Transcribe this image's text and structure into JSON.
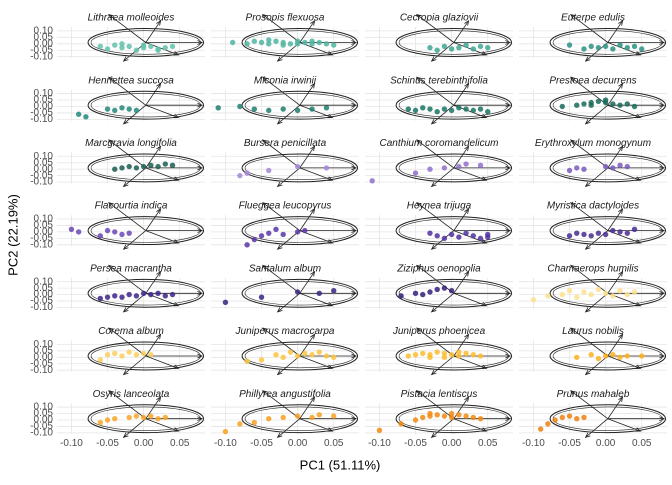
{
  "chart_data": {
    "type": "scatter",
    "xlabel": "PC1 (51.11%)",
    "ylabel": "PC2 (22.19%)",
    "xlim": [
      -0.12,
      0.085
    ],
    "ylim": [
      -0.11,
      0.13
    ],
    "xticks": [
      {
        "value": -0.1,
        "label": "-0.10"
      },
      {
        "value": -0.05,
        "label": "-0.05"
      },
      {
        "value": 0,
        "label": "0.00"
      },
      {
        "value": 0.05,
        "label": "0.05"
      }
    ],
    "yticks": [
      {
        "value": 0.1,
        "label": "0.10"
      },
      {
        "value": 0.05,
        "label": "0.05"
      },
      {
        "value": 0,
        "label": "0.00"
      },
      {
        "value": -0.05,
        "label": "-0.05"
      },
      {
        "value": -0.1,
        "label": "-0.10"
      }
    ],
    "grid": true,
    "facets": [
      {
        "title": "Lithraea molleoides",
        "color": "#62c2aa",
        "x": [
          -0.06,
          -0.05,
          -0.04,
          -0.03,
          -0.02,
          -0.01,
          0.0,
          0.01,
          0.02,
          0.03,
          0.04,
          -0.03,
          0.0,
          0.02
        ],
        "y": [
          -0.02,
          -0.04,
          -0.01,
          -0.03,
          -0.02,
          -0.05,
          -0.03,
          -0.02,
          -0.04,
          -0.03,
          -0.02,
          0.0,
          -0.01,
          -0.05
        ]
      },
      {
        "title": "Prosopis flexuosa",
        "color": "#4fb5a0",
        "x": [
          -0.09,
          -0.07,
          -0.06,
          -0.05,
          -0.04,
          -0.03,
          -0.02,
          -0.01,
          0.0,
          0.01,
          0.02,
          0.03,
          0.04,
          0.05,
          -0.04,
          -0.02,
          0.0,
          0.02
        ],
        "y": [
          0.01,
          0.0,
          0.02,
          0.01,
          0.0,
          0.02,
          0.01,
          0.0,
          0.02,
          0.01,
          0.0,
          0.01,
          0.0,
          -0.01,
          0.03,
          -0.01,
          0.0,
          0.02
        ]
      },
      {
        "title": "Cecropia glaziovii",
        "color": "#3ea792",
        "x": [
          -0.03,
          -0.02,
          -0.01,
          0.0,
          0.01,
          0.02,
          0.03,
          0.04,
          0.05
        ],
        "y": [
          -0.03,
          -0.05,
          -0.02,
          -0.04,
          -0.03,
          -0.01,
          -0.04,
          -0.02,
          -0.03
        ]
      },
      {
        "title": "Euterpe edulis",
        "color": "#2b9182",
        "x": [
          -0.05,
          -0.03,
          -0.02,
          -0.01,
          0.0,
          0.01,
          0.02,
          0.03,
          0.04,
          0.05
        ],
        "y": [
          -0.01,
          -0.04,
          -0.02,
          -0.03,
          -0.02,
          -0.04,
          -0.01,
          -0.03,
          -0.02,
          -0.04
        ]
      },
      {
        "title": "Henriettea succosa",
        "color": "#23887a",
        "x": [
          -0.09,
          -0.08,
          -0.05,
          -0.04,
          -0.03,
          -0.02,
          -0.01
        ],
        "y": [
          -0.06,
          -0.08,
          -0.02,
          -0.03,
          -0.01,
          -0.02,
          -0.03
        ]
      },
      {
        "title": "Miconia irwinii",
        "color": "#1f7f70",
        "x": [
          -0.11,
          -0.08,
          -0.06,
          -0.04,
          -0.02,
          0.0,
          0.02,
          0.04
        ],
        "y": [
          -0.01,
          0.0,
          -0.02,
          -0.03,
          -0.02,
          -0.03,
          -0.02,
          -0.01
        ]
      },
      {
        "title": "Schinus terebinthifolia",
        "color": "#1a7464",
        "x": [
          -0.06,
          -0.05,
          -0.04,
          -0.03,
          -0.02,
          -0.01,
          0.0,
          0.01,
          0.02,
          0.03,
          0.04,
          0.05
        ],
        "y": [
          -0.02,
          -0.03,
          -0.01,
          -0.02,
          -0.04,
          -0.02,
          -0.03,
          -0.01,
          -0.02,
          -0.03,
          -0.02,
          -0.04
        ]
      },
      {
        "title": "Prestoea decurrens",
        "color": "#176a5a",
        "x": [
          -0.06,
          -0.04,
          -0.03,
          -0.02,
          -0.01,
          0.0,
          0.01,
          0.02,
          0.03,
          0.04,
          -0.02,
          0.0
        ],
        "y": [
          0.0,
          0.01,
          0.02,
          0.03,
          0.04,
          0.03,
          0.02,
          0.01,
          0.02,
          0.0,
          0.01,
          0.05
        ]
      },
      {
        "title": "Marcgravia longifolia",
        "color": "#1a5e50",
        "x": [
          -0.04,
          -0.03,
          -0.02,
          -0.01,
          0.0,
          0.01,
          0.02,
          0.03,
          0.04
        ],
        "y": [
          0.0,
          0.01,
          0.02,
          0.01,
          0.02,
          0.03,
          0.02,
          0.04,
          0.03
        ]
      },
      {
        "title": "Bursera penicillata",
        "color": "#a486d6",
        "x": [
          -0.08,
          -0.07,
          -0.04,
          0.0,
          0.04
        ],
        "y": [
          -0.05,
          -0.03,
          -0.01,
          0.02,
          0.01
        ]
      },
      {
        "title": "Canthium coromandelicum",
        "color": "#9070cc",
        "x": [
          -0.11,
          -0.05,
          -0.03,
          -0.01,
          0.01,
          0.02,
          0.04
        ],
        "y": [
          -0.09,
          -0.03,
          0.0,
          0.01,
          0.02,
          0.04,
          0.03
        ]
      },
      {
        "title": "Erythroxylum monogynum",
        "color": "#7b5ac0",
        "x": [
          -0.05,
          -0.04,
          -0.03,
          0.0,
          0.01,
          0.02,
          0.03
        ],
        "y": [
          -0.01,
          0.01,
          0.0,
          0.02,
          0.01,
          0.03,
          0.02
        ]
      },
      {
        "title": "Flacourtia indica",
        "color": "#6a46b4",
        "x": [
          -0.1,
          -0.09,
          -0.06,
          -0.05,
          -0.04,
          -0.03,
          -0.02
        ],
        "y": [
          0.02,
          0.0,
          -0.03,
          0.01,
          0.0,
          -0.02,
          -0.01
        ]
      },
      {
        "title": "Flueggea leucopyrus",
        "color": "#5a36a8",
        "x": [
          -0.07,
          -0.06,
          -0.05,
          -0.04,
          -0.03,
          -0.02,
          0.0,
          0.01
        ],
        "y": [
          -0.1,
          -0.06,
          -0.03,
          -0.01,
          0.02,
          -0.02,
          0.0,
          0.01
        ]
      },
      {
        "title": "Heynea trijuga",
        "color": "#50309e",
        "x": [
          -0.03,
          -0.02,
          -0.01,
          0.0,
          0.01,
          0.02,
          0.03,
          0.04,
          0.05,
          0.05
        ],
        "y": [
          -0.01,
          -0.03,
          -0.05,
          -0.02,
          -0.04,
          -0.01,
          -0.03,
          -0.05,
          -0.02,
          -0.04
        ]
      },
      {
        "title": "Myristica dactyloides",
        "color": "#482a92",
        "x": [
          -0.05,
          -0.04,
          -0.03,
          -0.02,
          -0.01,
          0.0,
          0.01,
          0.02,
          0.03,
          0.04
        ],
        "y": [
          -0.03,
          -0.01,
          -0.02,
          -0.03,
          -0.01,
          -0.02,
          0.01,
          0.0,
          -0.01,
          0.02
        ]
      },
      {
        "title": "Persea macrantha",
        "color": "#3d2488",
        "x": [
          -0.06,
          -0.05,
          -0.04,
          -0.03,
          -0.02,
          -0.01,
          0.0,
          0.01,
          0.02,
          0.03,
          0.04
        ],
        "y": [
          -0.03,
          -0.02,
          -0.01,
          -0.02,
          0.0,
          -0.01,
          0.01,
          0.0,
          0.01,
          -0.01,
          0.0
        ]
      },
      {
        "title": "Santalum album",
        "color": "#3a2280",
        "x": [
          -0.1,
          -0.05,
          0.0,
          0.03,
          0.05
        ],
        "y": [
          -0.06,
          -0.02,
          0.02,
          0.01,
          0.03
        ]
      },
      {
        "title": "Ziziphus oenopolia",
        "color": "#36207a",
        "x": [
          -0.07,
          -0.05,
          -0.04,
          -0.03,
          -0.02,
          -0.01,
          0.0
        ],
        "y": [
          -0.01,
          0.01,
          0.0,
          0.02,
          0.04,
          0.05,
          0.03
        ]
      },
      {
        "title": "Chamaerops humilis",
        "color": "#fde08a",
        "x": [
          -0.1,
          -0.08,
          -0.06,
          -0.05,
          -0.04,
          -0.03,
          -0.02,
          -0.01,
          0.0,
          0.01,
          0.02,
          0.03,
          0.04
        ],
        "y": [
          -0.04,
          -0.01,
          0.0,
          0.03,
          -0.02,
          0.02,
          0.0,
          0.04,
          0.01,
          -0.01,
          0.03,
          0.0,
          0.02
        ]
      },
      {
        "title": "Corema album",
        "color": "#fcce5c",
        "x": [
          -0.06,
          -0.05,
          -0.04,
          -0.03,
          -0.02,
          -0.01,
          0.0,
          0.01
        ],
        "y": [
          -0.02,
          0.02,
          0.03,
          0.01,
          0.04,
          0.02,
          0.03,
          0.02
        ]
      },
      {
        "title": "Juniperus macrocarpa",
        "color": "#fbc440",
        "x": [
          -0.07,
          -0.05,
          -0.03,
          -0.02,
          -0.01,
          0.0,
          0.01,
          0.02,
          0.03,
          0.04,
          0.05
        ],
        "y": [
          -0.03,
          -0.02,
          0.02,
          0.0,
          0.04,
          0.01,
          0.03,
          0.02,
          0.04,
          0.01,
          0.0
        ]
      },
      {
        "title": "Juniperus phoenicea",
        "color": "#fcbc30",
        "x": [
          -0.06,
          -0.05,
          -0.04,
          -0.03,
          -0.02,
          -0.01,
          0.0,
          0.01,
          0.02,
          0.03,
          0.04,
          -0.03,
          -0.01,
          0.01
        ],
        "y": [
          0.01,
          0.02,
          0.03,
          0.02,
          0.04,
          0.03,
          0.02,
          0.01,
          0.03,
          0.02,
          0.01,
          0.0,
          0.0,
          0.04
        ]
      },
      {
        "title": "Laurus nobilis",
        "color": "#fbb020",
        "x": [
          -0.04,
          -0.02,
          -0.01,
          0.0,
          0.01,
          0.02,
          0.03,
          0.05
        ],
        "y": [
          0.0,
          0.02,
          -0.01,
          0.01,
          0.02,
          0.0,
          0.01,
          0.01
        ]
      },
      {
        "title": "Osyris lanceolata",
        "color": "#f8a628",
        "x": [
          -0.06,
          -0.05,
          -0.04,
          -0.02,
          -0.01,
          0.0,
          0.01,
          0.02,
          0.03
        ],
        "y": [
          -0.02,
          0.0,
          0.01,
          0.02,
          0.03,
          0.02,
          0.03,
          0.01,
          0.02
        ]
      },
      {
        "title": "Phillyrea angustifolia",
        "color": "#f7a020",
        "x": [
          -0.1,
          -0.08,
          -0.06,
          -0.04,
          -0.02,
          0.0,
          0.02,
          0.03,
          0.05
        ],
        "y": [
          -0.09,
          -0.03,
          -0.02,
          0.01,
          0.02,
          0.03,
          0.02,
          0.04,
          0.03
        ]
      },
      {
        "title": "Pistacia lentiscus",
        "color": "#f28a10",
        "x": [
          -0.1,
          -0.07,
          -0.05,
          -0.04,
          -0.03,
          -0.02,
          -0.01,
          0.0,
          0.01,
          0.02,
          0.03,
          0.04,
          -0.03,
          0.0
        ],
        "y": [
          -0.08,
          -0.03,
          0.0,
          0.02,
          0.03,
          0.04,
          0.03,
          0.02,
          0.04,
          0.03,
          0.02,
          0.01,
          0.05,
          0.05
        ]
      },
      {
        "title": "Prunus mahaleb",
        "color": "#ef8010",
        "x": [
          -0.09,
          -0.08,
          -0.07,
          -0.06,
          -0.05,
          -0.04,
          -0.03
        ],
        "y": [
          -0.07,
          -0.03,
          0.0,
          0.02,
          0.03,
          0.01,
          0.02
        ]
      }
    ]
  }
}
